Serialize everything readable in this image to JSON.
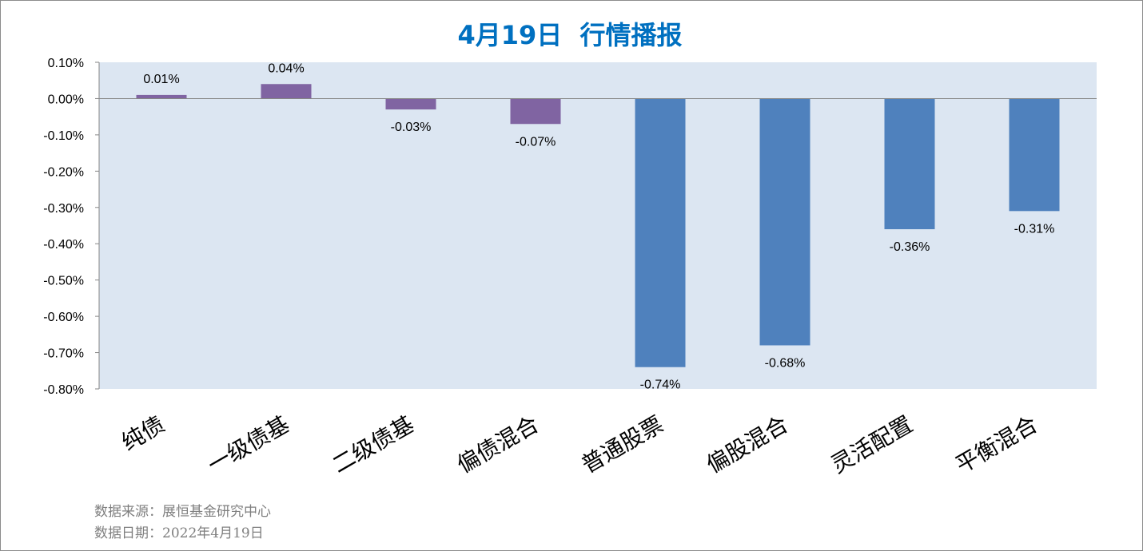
{
  "colors": {
    "title": "#0070C0",
    "plot_background": "#DCE6F2",
    "axis_line": "#868686",
    "border": "#8C8C8C",
    "bond_series": "#8064A2",
    "equity_series": "#4F81BD"
  },
  "footer": {
    "source": "数据来源：展恒基金研究中心",
    "date": "数据日期：2022年4月19日"
  },
  "chart_data": {
    "type": "bar",
    "title": "4月19日  行情播报",
    "xlabel": "",
    "ylabel": "",
    "value_unit": "%",
    "categories": [
      "纯债",
      "一级债基",
      "二级债基",
      "偏债混合",
      "普通股票",
      "偏股混合",
      "灵活配置",
      "平衡混合"
    ],
    "values": [
      0.01,
      0.04,
      -0.03,
      -0.07,
      -0.74,
      -0.68,
      -0.36,
      -0.31
    ],
    "data_labels": [
      "0.01%",
      "0.04%",
      "-0.03%",
      "-0.07%",
      "-0.74%",
      "-0.68%",
      "-0.36%",
      "-0.31%"
    ],
    "bar_colors": [
      "#8064A2",
      "#8064A2",
      "#8064A2",
      "#8064A2",
      "#4F81BD",
      "#4F81BD",
      "#4F81BD",
      "#4F81BD"
    ],
    "ylim": [
      -0.8,
      0.1
    ],
    "yticks": [
      {
        "value": 0.1,
        "label": "0.10%"
      },
      {
        "value": 0.0,
        "label": "0.00%"
      },
      {
        "value": -0.1,
        "label": "-0.10%"
      },
      {
        "value": -0.2,
        "label": "-0.20%"
      },
      {
        "value": -0.3,
        "label": "-0.30%"
      },
      {
        "value": -0.4,
        "label": "-0.40%"
      },
      {
        "value": -0.5,
        "label": "-0.50%"
      },
      {
        "value": -0.6,
        "label": "-0.60%"
      },
      {
        "value": -0.7,
        "label": "-0.70%"
      },
      {
        "value": -0.8,
        "label": "-0.80%"
      }
    ],
    "grid": false,
    "legend": "none"
  }
}
